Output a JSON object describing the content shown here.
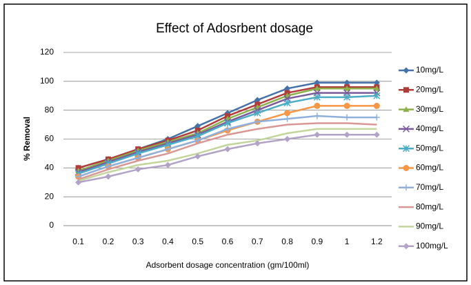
{
  "chart_data": {
    "type": "line",
    "title": "Effect of Adosrbent dosage",
    "xlabel": "Adsorbent dosage concentration (gm/100ml)",
    "ylabel": "% Removal",
    "categories": [
      "0.1",
      "0.2",
      "0.3",
      "0.4",
      "0.5",
      "0.6",
      "0.7",
      "0.8",
      "0.9",
      "1",
      "1.2"
    ],
    "ylim": [
      0,
      120
    ],
    "yticks": [
      0,
      20,
      40,
      60,
      80,
      100,
      120
    ],
    "grid": true,
    "legend": "right",
    "series": [
      {
        "name": "10mg/L",
        "color": "#4472a8",
        "values": [
          40,
          46,
          53,
          60,
          69,
          78,
          87,
          95,
          99,
          99,
          99
        ]
      },
      {
        "name": "20mg/L",
        "color": "#b03c3a",
        "values": [
          40,
          46,
          53,
          59,
          66,
          76,
          84,
          92,
          96,
          96,
          96
        ]
      },
      {
        "name": "30mg/L",
        "color": "#8db04a",
        "values": [
          38,
          45,
          52,
          58,
          64,
          74,
          82,
          90,
          95,
          95,
          95
        ]
      },
      {
        "name": "40mg/L",
        "color": "#7a5a9a",
        "values": [
          37,
          44,
          51,
          57,
          63,
          72,
          80,
          88,
          92,
          92,
          92
        ]
      },
      {
        "name": "50mg/L",
        "color": "#4bacc6",
        "values": [
          36,
          43,
          50,
          56,
          62,
          71,
          78,
          85,
          89,
          89,
          90
        ]
      },
      {
        "name": "60mg/L",
        "color": "#f79646",
        "values": [
          34,
          41,
          47,
          53,
          59,
          66,
          72,
          78,
          83,
          83,
          83
        ]
      },
      {
        "name": "70mg/L",
        "color": "#8fb0dd",
        "values": [
          34,
          41,
          47,
          53,
          59,
          67,
          72,
          74,
          76,
          75,
          75
        ]
      },
      {
        "name": "80mg/L",
        "color": "#d99694",
        "values": [
          32,
          39,
          45,
          50,
          57,
          63,
          67,
          70,
          71,
          71,
          70
        ]
      },
      {
        "name": "90mg/L",
        "color": "#c3d69b",
        "values": [
          31,
          37,
          42,
          45,
          50,
          56,
          59,
          64,
          67,
          67,
          67
        ]
      },
      {
        "name": "100mg/L",
        "color": "#b3a2c7",
        "values": [
          30,
          34,
          39,
          42,
          48,
          53,
          57,
          60,
          63,
          63,
          63
        ]
      }
    ]
  }
}
